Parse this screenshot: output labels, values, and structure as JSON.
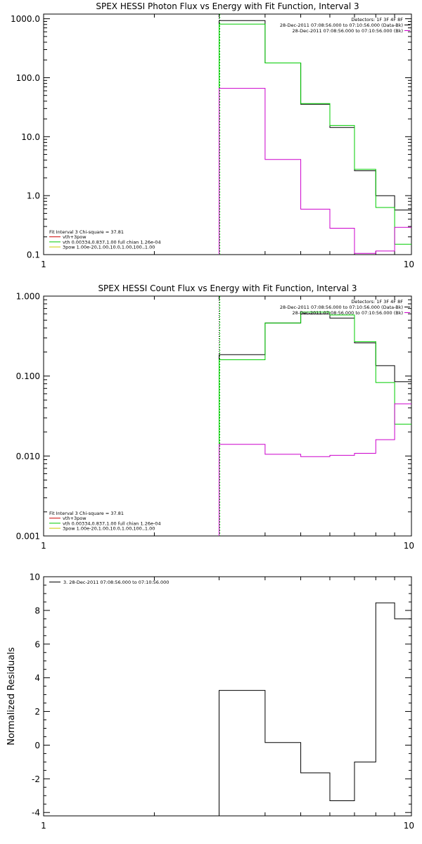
{
  "chart_data": [
    {
      "type": "line",
      "step": true,
      "title": "SPEX HESSI Photon Flux vs Energy with Fit Function, Interval 3",
      "xlabel": "",
      "ylabel": "",
      "xscale": "log",
      "yscale": "log",
      "xlim": [
        1,
        10
      ],
      "ylim": [
        0.1,
        1200
      ],
      "xticks": [
        "1",
        "10"
      ],
      "yticks": [
        {
          "value": 1000,
          "label": "1000.0"
        },
        {
          "value": 100,
          "label": "100.0"
        },
        {
          "value": 10,
          "label": "10.0"
        },
        {
          "value": 1,
          "label": "1.0"
        },
        {
          "value": 0.1,
          "label": "0.1"
        }
      ],
      "vline": 3.0,
      "edges": [
        3.0,
        4.0,
        5.0,
        6.0,
        7.0,
        8.0,
        9.0,
        10.0
      ],
      "series": [
        {
          "color": "#000000",
          "values": [
            930,
            178,
            35.5,
            14.3,
            2.65,
            1.0,
            0.57
          ]
        },
        {
          "color": "#00cc00",
          "values": [
            810,
            178,
            36.5,
            15.5,
            2.8,
            0.63,
            0.15
          ]
        },
        {
          "color": "#cc00cc",
          "values": [
            66,
            4.1,
            0.59,
            0.28,
            0.105,
            0.115,
            0.29
          ]
        }
      ],
      "legend_top": {
        "lines": [
          {
            "text": "Detectors: 1F 3F 4F 8F",
            "swatch": ""
          },
          {
            "text": "28-Dec-2011 07:08:56.000 to 07:10:56.000 (Data-Bk)",
            "swatch": "#000000"
          },
          {
            "text": "28-Dec-2011 07:08:56.000 to 07:10:56.000 (Bk)",
            "swatch": "#cc00cc"
          }
        ]
      },
      "legend_bottom": {
        "lines": [
          {
            "text": "Fit Interval 3   Chi-square = 37.81",
            "swatch": ""
          },
          {
            "text": "vth+3pow",
            "swatch": "#cc0000"
          },
          {
            "text": "vth 0.00334,0.837,1.00  full chian 1.26e-04",
            "swatch": "#00cc00"
          },
          {
            "text": "3pow 1.00e-20,1.00,10.0,1.00,100.,1.00",
            "swatch": "#cccc00"
          }
        ]
      }
    },
    {
      "type": "line",
      "step": true,
      "title": "SPEX HESSI Count Flux vs Energy with Fit Function, Interval 3",
      "xlabel": "",
      "ylabel": "",
      "xscale": "log",
      "yscale": "log",
      "xlim": [
        1,
        10
      ],
      "ylim": [
        0.001,
        1.0
      ],
      "xticks": [
        "1",
        "10"
      ],
      "yticks": [
        {
          "value": 1.0,
          "label": "1.000"
        },
        {
          "value": 0.1,
          "label": "0.100"
        },
        {
          "value": 0.01,
          "label": "0.010"
        },
        {
          "value": 0.001,
          "label": "0.001"
        }
      ],
      "vline": 3.0,
      "edges": [
        3.0,
        4.0,
        5.0,
        6.0,
        7.0,
        8.0,
        9.0,
        10.0
      ],
      "series": [
        {
          "color": "#000000",
          "values": [
            0.185,
            0.46,
            0.6,
            0.53,
            0.26,
            0.135,
            0.085
          ]
        },
        {
          "color": "#00cc00",
          "values": [
            0.16,
            0.46,
            0.63,
            0.58,
            0.27,
            0.083,
            0.025
          ]
        },
        {
          "color": "#cc00cc",
          "values": [
            0.014,
            0.0105,
            0.0098,
            0.0102,
            0.0108,
            0.016,
            0.045
          ]
        }
      ],
      "legend_top": {
        "lines": [
          {
            "text": "Detectors: 1F 3F 4F 8F",
            "swatch": ""
          },
          {
            "text": "28-Dec-2011 07:08:56.000 to 07:10:56.000 (Data-Bk)",
            "swatch": "#000000"
          },
          {
            "text": "28-Dec-2011 07:08:56.000 to 07:10:56.000 (Bk)",
            "swatch": "#cc00cc"
          }
        ]
      },
      "legend_bottom": {
        "lines": [
          {
            "text": "Fit Interval 3   Chi-square = 37.81",
            "swatch": ""
          },
          {
            "text": "vth+3pow",
            "swatch": "#cc0000"
          },
          {
            "text": "vth 0.00334,0.837,1.00  full chian 1.26e-04",
            "swatch": "#00cc00"
          },
          {
            "text": "3pow 1.00e-20,1.00,10.0,1.00,100.,1.00",
            "swatch": "#cccc00"
          }
        ]
      }
    },
    {
      "type": "line",
      "step": true,
      "title": "",
      "xlabel": "",
      "ylabel": "Normalized Residuals",
      "xscale": "log",
      "yscale": "linear",
      "xlim": [
        1,
        10
      ],
      "ylim": [
        -4.2,
        10
      ],
      "xticks": [
        "1",
        "10"
      ],
      "yticks": [
        {
          "value": 10,
          "label": "10"
        },
        {
          "value": 8,
          "label": "8"
        },
        {
          "value": 6,
          "label": "6"
        },
        {
          "value": 4,
          "label": "4"
        },
        {
          "value": 2,
          "label": "2"
        },
        {
          "value": 0,
          "label": "0"
        },
        {
          "value": -2,
          "label": "-2"
        },
        {
          "value": -4,
          "label": "-4"
        }
      ],
      "edges": [
        3.0,
        4.0,
        5.0,
        6.0,
        7.0,
        8.0,
        9.0,
        10.0
      ],
      "series": [
        {
          "color": "#000000",
          "values": [
            3.25,
            0.15,
            -1.65,
            -3.3,
            -1.0,
            8.45,
            7.5
          ]
        }
      ],
      "legend_top": {
        "lines": [
          {
            "text": "3. 28-Dec-2011 07:08:56.000 to 07:10:56.000",
            "swatch": "#000000"
          }
        ]
      },
      "legend_bottom": {
        "lines": []
      }
    }
  ]
}
